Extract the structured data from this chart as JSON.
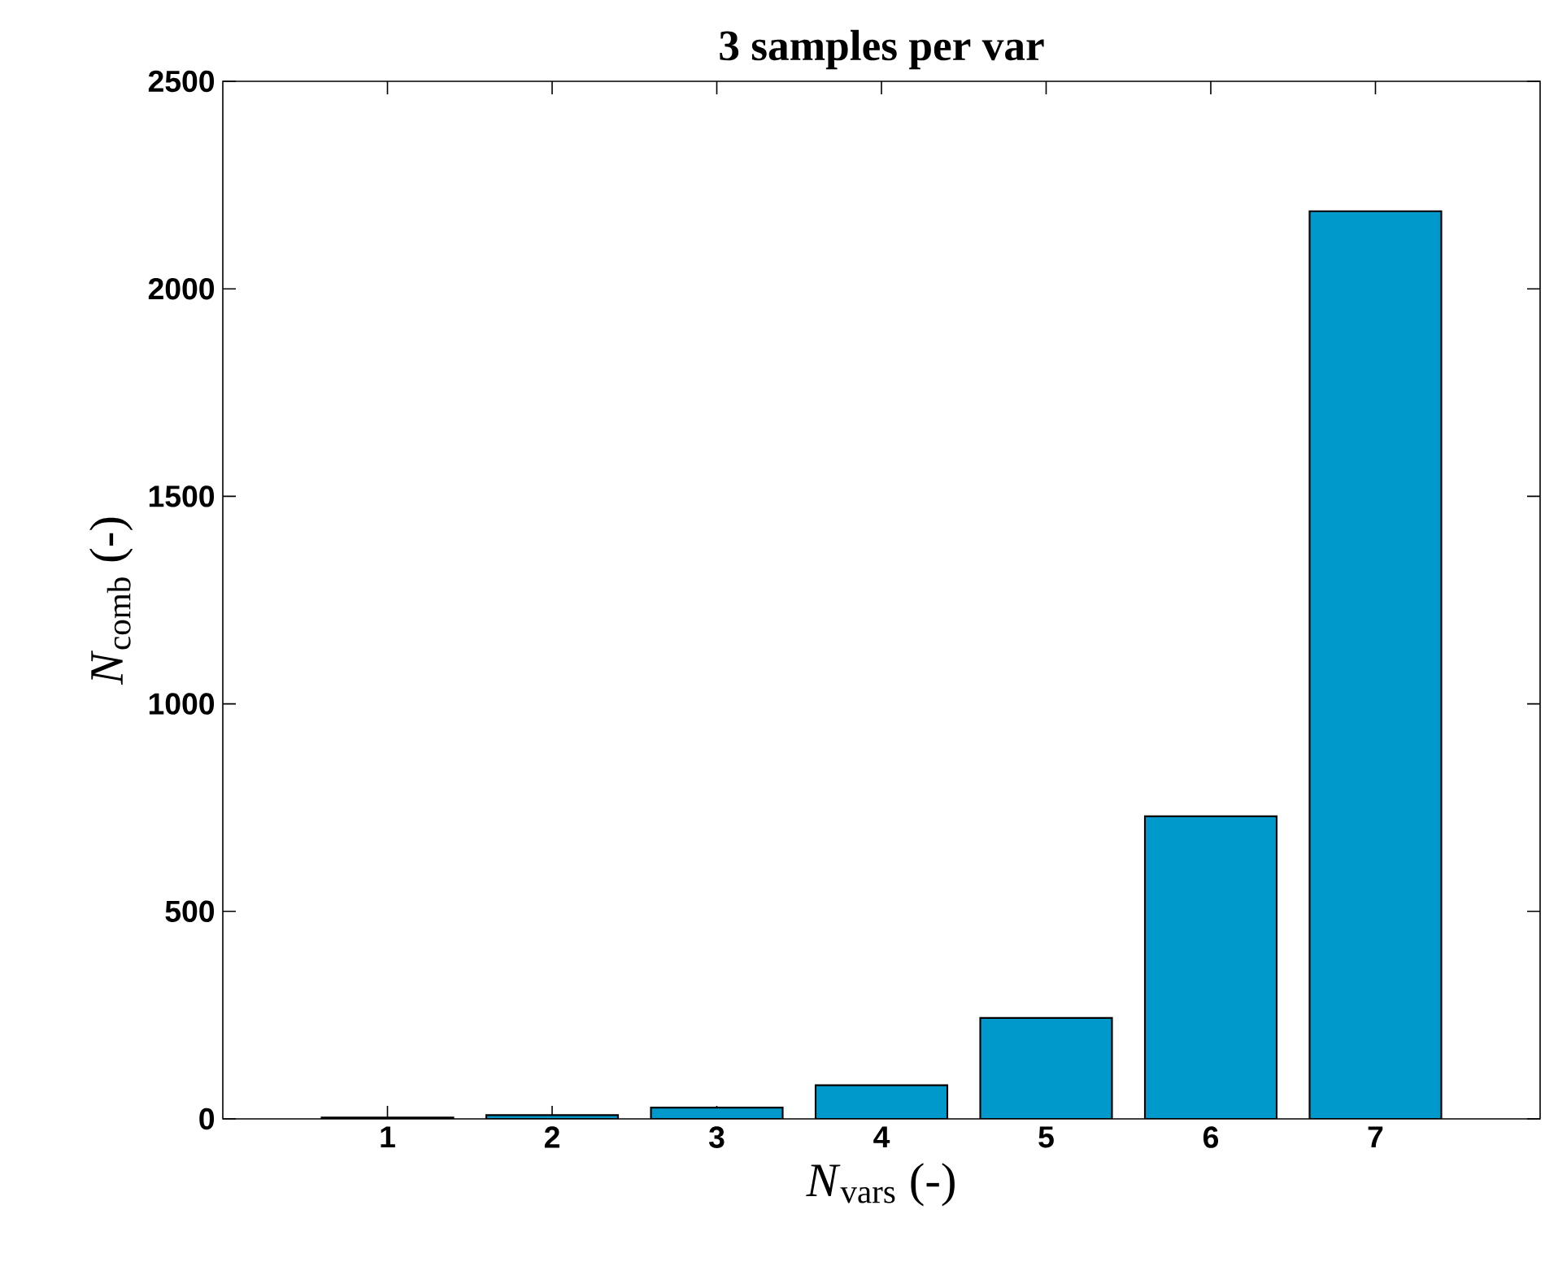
{
  "chart_data": {
    "type": "bar",
    "title": "3 samples per var",
    "xlabel": "*N*$_{vars}$ (-)",
    "ylabel": "*N*$_{comb}$ (-)",
    "x": [
      1,
      2,
      3,
      4,
      5,
      6,
      7
    ],
    "values": [
      3,
      9,
      27,
      81,
      243,
      729,
      2187
    ],
    "color": "#0099cc",
    "xlim": [
      0,
      8
    ],
    "xticks": [
      1,
      2,
      3,
      4,
      5,
      6,
      7
    ],
    "ylim": [
      0,
      2500
    ],
    "yticks": [
      0,
      500,
      1000,
      1500,
      2000,
      2500
    ]
  }
}
